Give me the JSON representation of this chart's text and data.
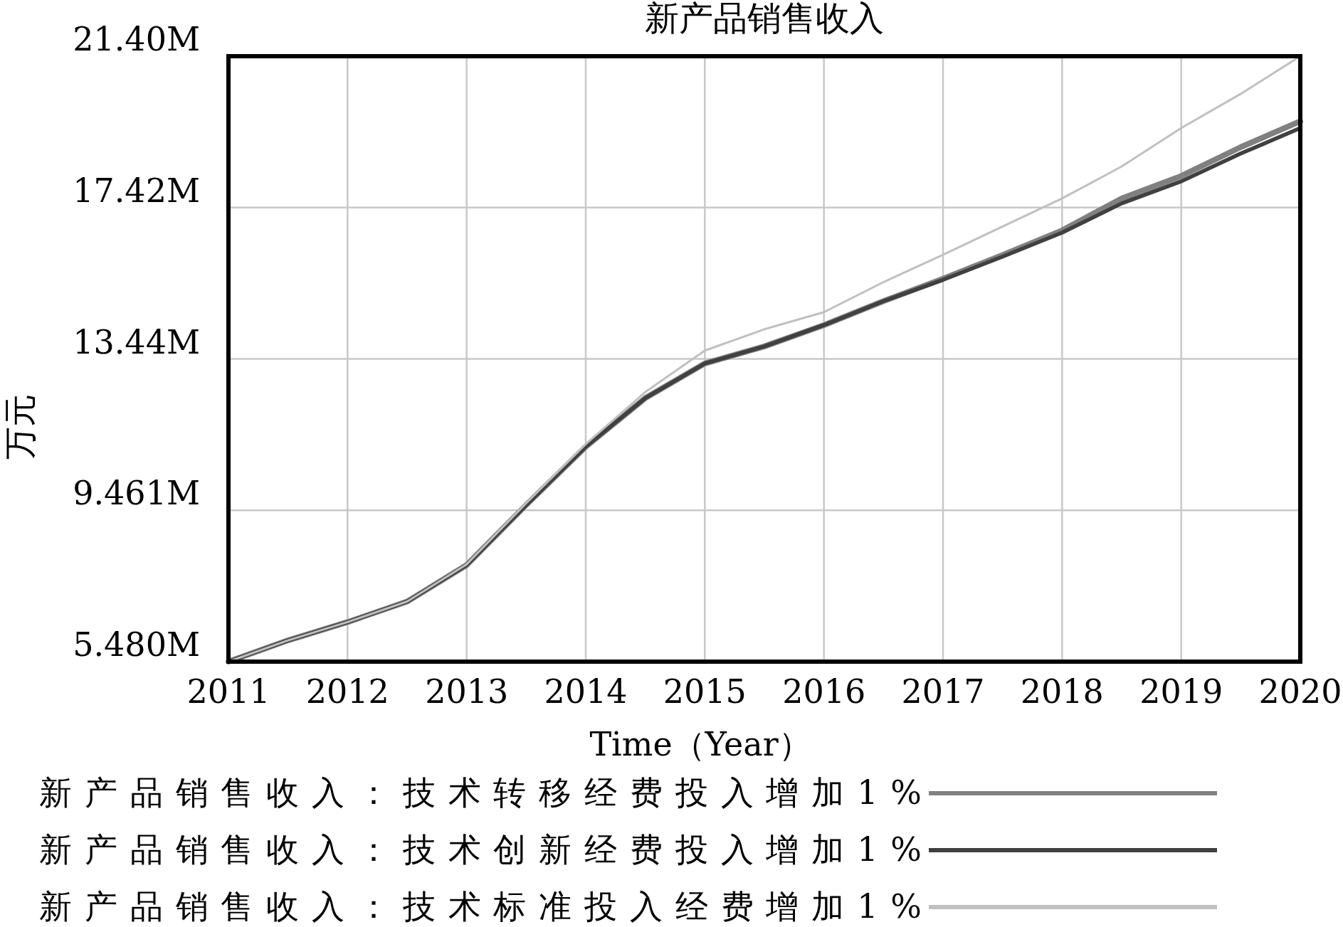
{
  "chart_data": {
    "type": "line",
    "title": "新产品销售收入",
    "xlabel": "Time（Year）",
    "ylabel": "万元",
    "x": [
      2011,
      2011.5,
      2012,
      2012.5,
      2013,
      2013.5,
      2014,
      2014.5,
      2015,
      2015.5,
      2016,
      2016.5,
      2017,
      2017.5,
      2018,
      2018.5,
      2019,
      2019.5,
      2020
    ],
    "series": [
      {
        "name": "新产品销售收入：技术转移经费投入增加1%",
        "color": "#808080",
        "values": [
          5.48,
          6.04,
          6.52,
          7.06,
          8.02,
          9.6,
          11.13,
          12.41,
          13.32,
          13.77,
          14.33,
          14.96,
          15.55,
          16.17,
          16.82,
          17.66,
          18.25,
          19.01,
          19.69
        ]
      },
      {
        "name": "新产品销售收入：技术创新经费投入增加1%",
        "color": "#404040",
        "values": [
          5.48,
          6.04,
          6.52,
          7.06,
          8.02,
          9.6,
          11.13,
          12.41,
          13.32,
          13.77,
          14.33,
          14.96,
          15.52,
          16.13,
          16.76,
          17.53,
          18.11,
          18.84,
          19.51
        ]
      },
      {
        "name": "新产品销售收入：技术标准投入经费增加1%",
        "color": "#c0c0c0",
        "values": [
          5.48,
          6.04,
          6.52,
          7.06,
          8.04,
          9.65,
          11.2,
          12.57,
          13.66,
          14.22,
          14.67,
          15.46,
          16.18,
          16.92,
          17.66,
          18.5,
          19.51,
          20.41,
          21.4
        ]
      }
    ],
    "xlim": [
      2011,
      2020
    ],
    "ylim": [
      5.48,
      21.4
    ],
    "xticks": [
      2011,
      2012,
      2013,
      2014,
      2015,
      2016,
      2017,
      2018,
      2019,
      2020
    ],
    "yticks": [
      {
        "value": 5.48,
        "label": "5.480M"
      },
      {
        "value": 9.461,
        "label": "9.461M"
      },
      {
        "value": 13.44,
        "label": "13.44M"
      },
      {
        "value": 17.42,
        "label": "17.42M"
      },
      {
        "value": 21.4,
        "label": "21.40M"
      }
    ],
    "grid": true,
    "legend": "bottom",
    "line_style": "solid",
    "marker": "none"
  }
}
